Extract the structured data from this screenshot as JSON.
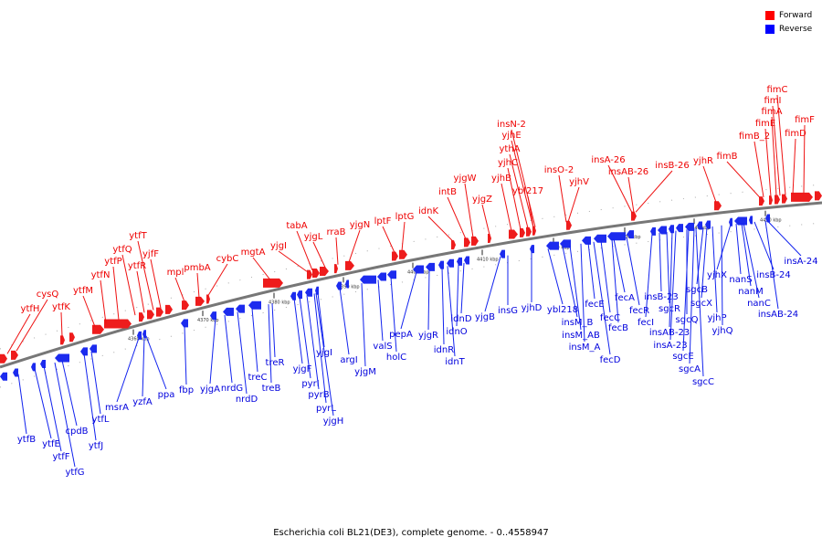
{
  "caption": "Escherichia coli BL21(DE3), complete genome. - 0..4558947",
  "legend": [
    {
      "label": "Forward",
      "color": "#ff0000"
    },
    {
      "label": "Reverse",
      "color": "#0000ff"
    }
  ],
  "colors": {
    "forward": "#ee1c1c",
    "reverse": "#1c2bee",
    "backbone": "#777777"
  },
  "ticks": [
    "4360 kbp",
    "4370 kbp",
    "4380 kbp",
    "4390 kbp",
    "4400 kbp",
    "4410 kbp",
    "4420 kbp",
    "4430 kbp",
    "4440 kbp",
    "4450 kbp"
  ],
  "forward_labels": [
    "ytfH",
    "cysQ",
    "ytfK",
    "ytfM",
    "ytfN",
    "ytfP",
    "ytfQ",
    "ytfR",
    "ytfT",
    "yjfF",
    "mpl",
    "pmbA",
    "cybC",
    "mgtA",
    "yjgI",
    "tabA",
    "yjgL",
    "rraB",
    "yjgN",
    "lptF",
    "lptG",
    "idnK",
    "intB",
    "yjgW",
    "yjgZ",
    "yjhB",
    "yjhC",
    "ythA",
    "yjhE",
    "insN-2",
    "ybl217",
    "insO-2",
    "yjhV",
    "insA-26",
    "insAB-26",
    "insB-26",
    "yjhR",
    "fimB",
    "fimB_2",
    "fimE",
    "fimA",
    "fimI",
    "fimC",
    "fimD",
    "fimF"
  ],
  "reverse_labels": [
    "ytfB",
    "ytfE",
    "ytfF",
    "ytfG",
    "cpdB",
    "ytfJ",
    "ytfL",
    "msrA",
    "yzfA",
    "ppa",
    "fbp",
    "yjgA",
    "nrdG",
    "nrdD",
    "treC",
    "treB",
    "treR",
    "yjgF",
    "pyrI",
    "pyrB",
    "pyrL",
    "yjgH",
    "yjgI",
    "argI",
    "yjgM",
    "valS",
    "holC",
    "pepA",
    "yjgR",
    "idnR",
    "idnT",
    "idnO",
    "idnD",
    "yjgB",
    "insG",
    "yjhD",
    "ybl218",
    "insM_B",
    "insM_AB",
    "insM_A",
    "fecE",
    "fecD",
    "fecC",
    "fecB",
    "fecA",
    "fecR",
    "fecI",
    "insB-23",
    "sgcR",
    "insAB-23",
    "insA-23",
    "sgcQ",
    "sgcE",
    "sgcA",
    "sgcC",
    "sgcB",
    "sgcX",
    "yjhP",
    "yjhQ",
    "yjhX",
    "nanS",
    "nanM",
    "nanC",
    "insB-24",
    "insAB-24",
    "insA-24"
  ]
}
